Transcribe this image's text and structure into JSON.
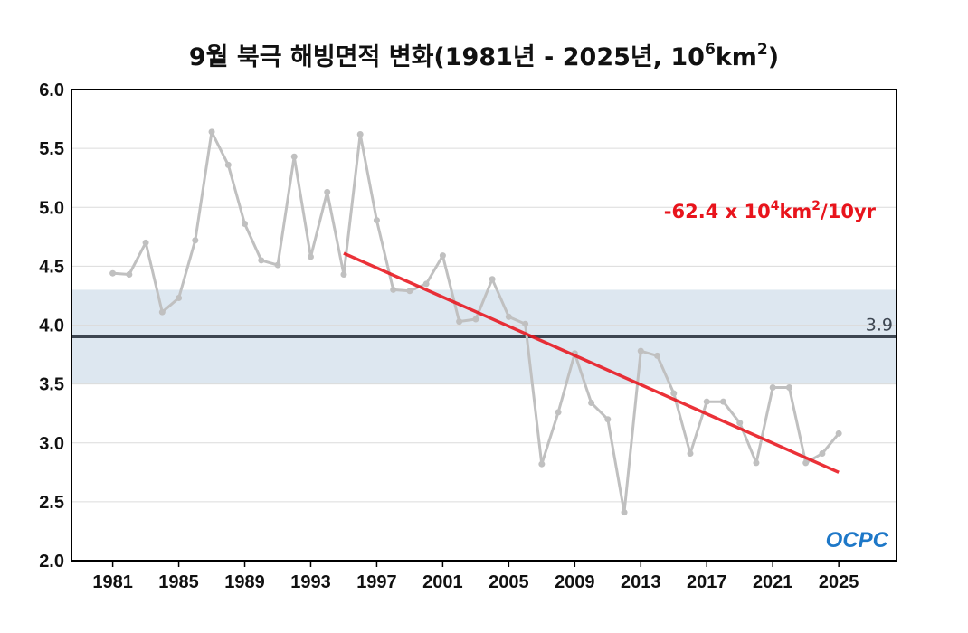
{
  "chart_data": {
    "type": "line",
    "title": {
      "main": "9월 북극 해빙면적 변화(1981년 - 2025년, 10",
      "sup1": "6",
      "mid": "km",
      "sup2": "2",
      "end": ")"
    },
    "ylim": [
      2.0,
      6.0
    ],
    "yticks": [
      "2.0",
      "2.5",
      "3.0",
      "3.5",
      "4.0",
      "4.5",
      "5.0",
      "5.5",
      "6.0"
    ],
    "xlim": [
      1978.5,
      2028.5
    ],
    "xticks": [
      "1981",
      "1985",
      "1989",
      "1993",
      "1997",
      "2001",
      "2005",
      "2009",
      "2013",
      "2017",
      "2021",
      "2025"
    ],
    "grid": true,
    "series": [
      {
        "x": [
          1981,
          1982,
          1983,
          1984,
          1985,
          1986,
          1987,
          1988,
          1989,
          1990,
          1991,
          1992,
          1993,
          1994,
          1995,
          1996,
          1997,
          1998,
          1999,
          2000,
          2001,
          2002,
          2003,
          2004,
          2005,
          2006,
          2007,
          2008,
          2009,
          2010,
          2011,
          2012,
          2013,
          2014,
          2015,
          2016,
          2017,
          2018,
          2019,
          2020,
          2021,
          2022,
          2023,
          2024,
          2025
        ],
        "values": [
          4.44,
          4.43,
          4.7,
          4.11,
          4.23,
          4.72,
          5.64,
          5.36,
          4.86,
          4.55,
          4.51,
          5.43,
          4.58,
          5.13,
          4.43,
          5.62,
          4.89,
          4.3,
          4.29,
          4.35,
          4.59,
          4.03,
          4.05,
          4.39,
          4.07,
          4.01,
          2.82,
          3.26,
          3.76,
          3.34,
          3.2,
          2.41,
          3.78,
          3.74,
          3.42,
          2.91,
          3.35,
          3.35,
          3.17,
          2.83,
          3.47,
          3.47,
          2.83,
          2.91,
          3.08
        ],
        "color": "#c0c0c0"
      }
    ],
    "mean": {
      "value": 3.9,
      "label": "3.9",
      "color": "#3d4651"
    },
    "normal_band": {
      "low": 3.5,
      "high": 4.3,
      "color": "#dde7f0"
    },
    "trend": {
      "x": [
        1995,
        2025
      ],
      "values": [
        4.61,
        2.75
      ],
      "color": "#e8141c",
      "label": {
        "base": "-62.4 x 10",
        "sup1": "4",
        "mid": "km",
        "sup2": "2",
        "end": "/10yr"
      }
    },
    "logo": "OCPC"
  }
}
